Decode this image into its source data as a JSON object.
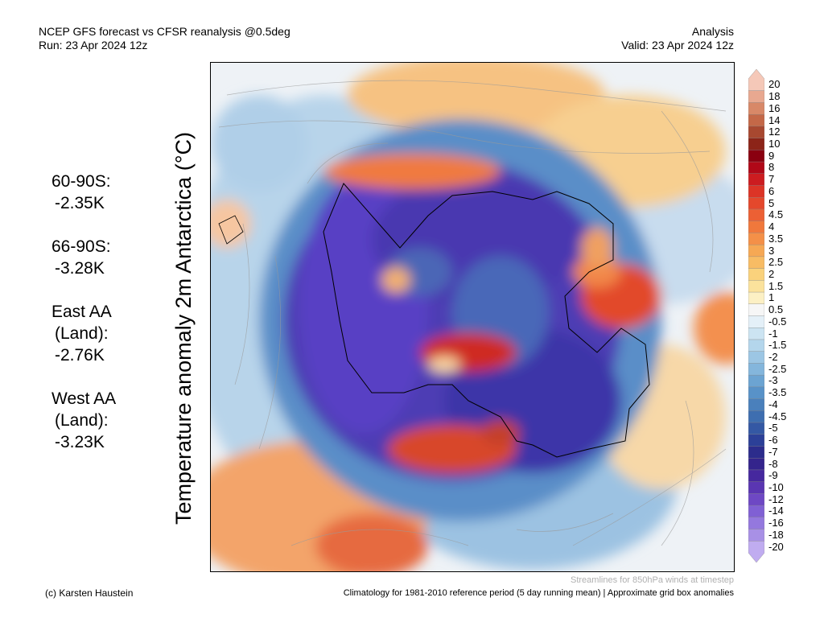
{
  "header": {
    "left_line1": "NCEP GFS forecast vs CFSR reanalysis @0.5deg",
    "left_line2": "Run: 23 Apr 2024 12z",
    "right_line1": "Analysis",
    "right_line2": "Valid: 23 Apr 2024 12z"
  },
  "title": "Temperature anomaly 2m Antarctica (°C)",
  "stats": [
    {
      "lines": [
        "60-90S:",
        "-2.35K"
      ]
    },
    {
      "lines": [
        "66-90S:",
        "-3.28K"
      ]
    },
    {
      "lines": [
        "East AA",
        "(Land):",
        "-2.76K"
      ]
    },
    {
      "lines": [
        "West AA",
        "(Land):",
        "-3.23K"
      ]
    }
  ],
  "colorbar": {
    "labels": [
      "20",
      "18",
      "16",
      "14",
      "12",
      "10",
      "9",
      "8",
      "7",
      "6",
      "5",
      "4.5",
      "4",
      "3.5",
      "3",
      "2.5",
      "2",
      "1.5",
      "1",
      "0.5",
      "-0.5",
      "-1",
      "-1.5",
      "-2",
      "-2.5",
      "-3",
      "-3.5",
      "-4",
      "-4.5",
      "-5",
      "-6",
      "-7",
      "-8",
      "-9",
      "-10",
      "-12",
      "-14",
      "-16",
      "-18",
      "-20"
    ],
    "colors": [
      "#f5c8b8",
      "#e8a890",
      "#d88868",
      "#c46848",
      "#a84830",
      "#8c2418",
      "#8a0010",
      "#b00818",
      "#cc1c20",
      "#dc3426",
      "#e4482c",
      "#ec6034",
      "#f0783c",
      "#f49048",
      "#f6a854",
      "#f8bc64",
      "#fad27c",
      "#fbe29c",
      "#fcf0c4",
      "#f6f6f6",
      "#e4f0f8",
      "#cce4f2",
      "#b4d6ec",
      "#9cc6e4",
      "#84b6dc",
      "#6ca4d2",
      "#5892c8",
      "#4a80bc",
      "#3e6eb0",
      "#3458a4",
      "#2c4098",
      "#2c2c8c",
      "#34248c",
      "#46289e",
      "#5a36b2",
      "#6e48c4",
      "#8060d4",
      "#9478de",
      "#a890e6",
      "#c0acf0"
    ]
  },
  "map": {
    "description_icon": "antarctica-polar-map",
    "streamline_color": "#909090",
    "coastline_color": "#000000"
  },
  "footer": {
    "credit": "(c) Karsten Haustein",
    "streamlines_note": "Streamlines for 850hPa winds at timestep",
    "climatology_note": "Climatology for 1981-2010 reference period (5 day running mean) | Approximate grid box anomalies"
  }
}
